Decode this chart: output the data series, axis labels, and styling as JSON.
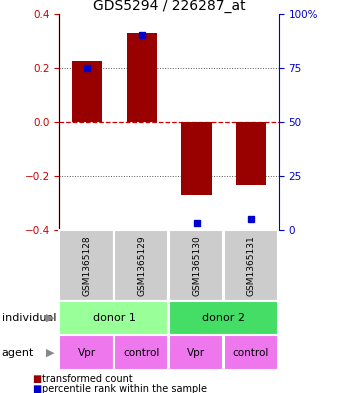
{
  "title": "GDS5294 / 226287_at",
  "samples": [
    "GSM1365128",
    "GSM1365129",
    "GSM1365130",
    "GSM1365131"
  ],
  "bar_values": [
    0.225,
    0.33,
    -0.27,
    -0.235
  ],
  "pct_values": [
    75,
    90,
    3,
    5
  ],
  "bar_color": "#990000",
  "percentile_color": "#0000cc",
  "ylim": [
    -0.4,
    0.4
  ],
  "yticks": [
    -0.4,
    -0.2,
    0.0,
    0.2,
    0.4
  ],
  "y2ticks": [
    0,
    25,
    50,
    75,
    100
  ],
  "y2ticklabels": [
    "0",
    "25",
    "50",
    "75",
    "100%"
  ],
  "hline_zero_color": "#cc0000",
  "dotted_color": "#555555",
  "individual_colors": [
    "#99ff99",
    "#44dd66"
  ],
  "individuals": [
    [
      "donor 1",
      0,
      2
    ],
    [
      "donor 2",
      2,
      4
    ]
  ],
  "agent_color": "#ee77ee",
  "agents": [
    "Vpr",
    "control",
    "Vpr",
    "control"
  ],
  "sample_box_color": "#cccccc",
  "legend_bar_label": "transformed count",
  "legend_pct_label": "percentile rank within the sample",
  "individual_label": "individual",
  "agent_label": "agent",
  "bar_width": 0.55,
  "title_fontsize": 10,
  "axis_fontsize": 7.5,
  "label_fontsize": 8
}
